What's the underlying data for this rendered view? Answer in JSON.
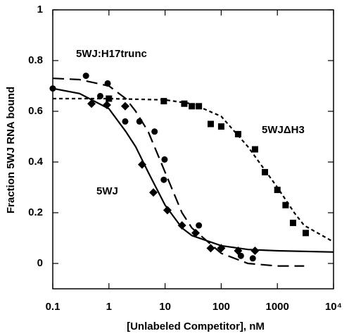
{
  "chart_data": {
    "type": "scatter",
    "xlabel": "[Unlabeled Competitor], nM",
    "ylabel": "Fraction 5WJ RNA bound",
    "xscale": "log",
    "xlim": [
      0.1,
      10000
    ],
    "xticks": [
      0.1,
      1,
      10,
      100,
      1000,
      {
        "value": 10000,
        "label": "10⁴"
      }
    ],
    "ylim": [
      -0.1,
      1
    ],
    "yticks": [
      0,
      0.2,
      0.4,
      0.6,
      0.8,
      1
    ],
    "series": [
      {
        "name": "5WJ",
        "color": "#000000",
        "marker": "diamond",
        "line_style": "solid",
        "x": [
          0.49,
          0.92,
          1.95,
          3.9,
          6.2,
          11,
          20,
          35,
          65,
          100,
          200,
          400
        ],
        "values": [
          0.63,
          0.625,
          0.62,
          0.39,
          0.28,
          0.21,
          0.15,
          0.12,
          0.06,
          0.06,
          0.05,
          0.05
        ],
        "fit_x": [
          0.1,
          0.3,
          1,
          2,
          3,
          5,
          10,
          20,
          30,
          100,
          300,
          1000,
          10000
        ],
        "fit_values": [
          0.69,
          0.67,
          0.61,
          0.52,
          0.46,
          0.36,
          0.23,
          0.14,
          0.11,
          0.07,
          0.055,
          0.05,
          0.045
        ]
      },
      {
        "name": "5WJ:H17trunc",
        "color": "#000000",
        "marker": "circle",
        "line_style": "long-dash",
        "x": [
          0.1,
          0.39,
          0.7,
          0.95,
          1.95,
          3.5,
          6.5,
          9.5,
          9.8,
          40,
          224,
          365
        ],
        "values": [
          0.69,
          0.74,
          0.66,
          0.71,
          0.56,
          0.56,
          0.52,
          0.33,
          0.41,
          0.15,
          0.03,
          0.02
        ],
        "fit_x": [
          0.1,
          0.3,
          1,
          2,
          3,
          5,
          10,
          20,
          30,
          100,
          300,
          1000,
          3000
        ],
        "fit_values": [
          0.73,
          0.725,
          0.7,
          0.65,
          0.6,
          0.52,
          0.36,
          0.2,
          0.14,
          0.04,
          0.0,
          -0.01,
          -0.01
        ]
      },
      {
        "name": "5WJΔH3",
        "color": "#000000",
        "marker": "square",
        "line_style": "short-dash",
        "x": [
          1,
          9.5,
          22,
          30,
          40,
          65,
          100,
          200,
          400,
          600,
          1000,
          1400,
          1900,
          3200
        ],
        "values": [
          0.65,
          0.64,
          0.63,
          0.62,
          0.62,
          0.55,
          0.54,
          0.51,
          0.45,
          0.36,
          0.29,
          0.23,
          0.16,
          0.12
        ],
        "fit_x": [
          0.1,
          1,
          10,
          30,
          100,
          300,
          1000,
          2000,
          3000,
          10000
        ],
        "fit_values": [
          0.65,
          0.65,
          0.645,
          0.63,
          0.58,
          0.46,
          0.3,
          0.2,
          0.15,
          0.085
        ]
      }
    ]
  }
}
